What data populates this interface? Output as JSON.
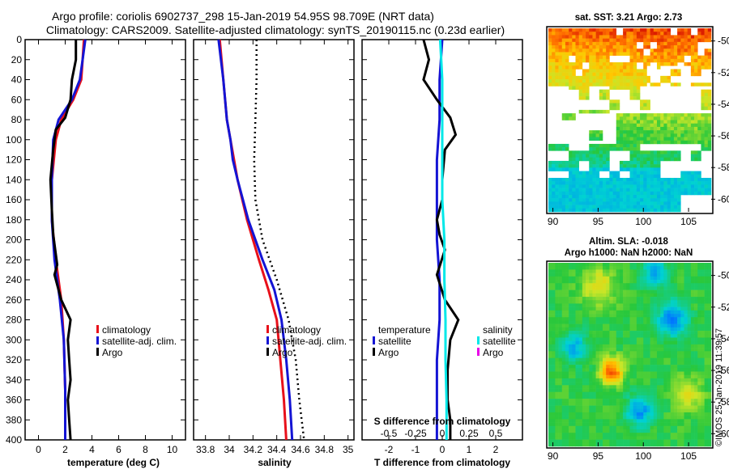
{
  "header": {
    "title_line1": "Argo profile: coriolis 6902737_298 15-Jan-2019 54.95S 98.709E (NRT data)",
    "title_line2": "Climatology: CARS2009. Satellite-adjusted climatology: synTS_20190115.nc (0.23d earlier)"
  },
  "watermark": "©IMOS 25-Jan-2019 11:39:57",
  "colors": {
    "climatology": "#e8101a",
    "satellite": "#1414d4",
    "argo": "#000000",
    "sat_salinity": "#00e8e8",
    "clim_salinity_marker": "#e800e8"
  },
  "chart_data": [
    {
      "id": "temperature",
      "type": "line",
      "xlabel": "temperature (deg C)",
      "ylabel": "",
      "xlim": [
        -1,
        11
      ],
      "ylim": [
        400,
        0
      ],
      "xticks": [
        0,
        2,
        4,
        6,
        8,
        10
      ],
      "yticks": [
        0,
        20,
        40,
        60,
        80,
        100,
        120,
        140,
        160,
        180,
        200,
        220,
        240,
        260,
        280,
        300,
        320,
        340,
        360,
        380,
        400
      ],
      "legend": [
        "climatology",
        "satellite-adj. clim.",
        "Argo"
      ],
      "series": [
        {
          "name": "climatology",
          "color": "#e8101a",
          "points": [
            [
              3.4,
              0
            ],
            [
              3.3,
              20
            ],
            [
              3.2,
              40
            ],
            [
              2.6,
              60
            ],
            [
              1.7,
              80
            ],
            [
              1.3,
              100
            ],
            [
              1.0,
              140
            ],
            [
              1.0,
              180
            ],
            [
              1.3,
              220
            ],
            [
              1.7,
              260
            ],
            [
              1.9,
              300
            ],
            [
              2.0,
              350
            ],
            [
              2.0,
              400
            ]
          ]
        },
        {
          "name": "satellite-adj. clim.",
          "color": "#1414d4",
          "points": [
            [
              3.5,
              0
            ],
            [
              3.3,
              20
            ],
            [
              3.1,
              40
            ],
            [
              2.5,
              60
            ],
            [
              1.5,
              80
            ],
            [
              1.1,
              100
            ],
            [
              1.0,
              140
            ],
            [
              1.0,
              180
            ],
            [
              1.2,
              220
            ],
            [
              1.6,
              260
            ],
            [
              1.9,
              300
            ],
            [
              2.0,
              350
            ],
            [
              2.0,
              400
            ]
          ]
        },
        {
          "name": "Argo",
          "color": "#000000",
          "points": [
            [
              2.8,
              0
            ],
            [
              2.8,
              20
            ],
            [
              2.5,
              40
            ],
            [
              2.4,
              60
            ],
            [
              2.0,
              78
            ],
            [
              1.3,
              90
            ],
            [
              1.1,
              110
            ],
            [
              0.9,
              140
            ],
            [
              1.0,
              170
            ],
            [
              1.1,
              195
            ],
            [
              1.4,
              225
            ],
            [
              1.2,
              235
            ],
            [
              1.7,
              260
            ],
            [
              2.4,
              280
            ],
            [
              2.2,
              300
            ],
            [
              2.3,
              320
            ],
            [
              2.4,
              340
            ],
            [
              2.2,
              360
            ],
            [
              2.3,
              380
            ],
            [
              2.4,
              400
            ]
          ]
        }
      ]
    },
    {
      "id": "salinity",
      "type": "line",
      "xlabel": "salinity",
      "ylabel": "",
      "xlim": [
        33.7,
        35.05
      ],
      "ylim": [
        400,
        0
      ],
      "xticks": [
        33.8,
        34,
        34.2,
        34.4,
        34.6,
        34.8,
        35
      ],
      "tick_labels": [
        "33.8",
        "34",
        "34.2",
        "34.4",
        "34.6",
        "34.8",
        "35"
      ],
      "legend": [
        "climatology",
        "satellite-adj. clim.",
        "Argo"
      ],
      "series": [
        {
          "name": "climatology",
          "color": "#e8101a",
          "points": [
            [
              33.92,
              0
            ],
            [
              33.95,
              40
            ],
            [
              33.98,
              80
            ],
            [
              34.01,
              100
            ],
            [
              34.04,
              120
            ],
            [
              34.07,
              140
            ],
            [
              34.15,
              180
            ],
            [
              34.25,
              220
            ],
            [
              34.33,
              250
            ],
            [
              34.4,
              280
            ],
            [
              34.43,
              320
            ],
            [
              34.46,
              360
            ],
            [
              34.48,
              400
            ]
          ]
        },
        {
          "name": "satellite-adj. clim.",
          "color": "#1414d4",
          "points": [
            [
              33.91,
              0
            ],
            [
              33.95,
              40
            ],
            [
              33.98,
              80
            ],
            [
              34.01,
              100
            ],
            [
              34.03,
              120
            ],
            [
              34.07,
              140
            ],
            [
              34.16,
              180
            ],
            [
              34.28,
              220
            ],
            [
              34.38,
              250
            ],
            [
              34.44,
              280
            ],
            [
              34.48,
              320
            ],
            [
              34.51,
              360
            ],
            [
              34.53,
              400
            ]
          ]
        },
        {
          "name": "Argo",
          "color": "#000000",
          "dashed": true,
          "points": [
            [
              34.23,
              0
            ],
            [
              34.23,
              40
            ],
            [
              34.22,
              80
            ],
            [
              34.21,
              120
            ],
            [
              34.22,
              160
            ],
            [
              34.28,
              200
            ],
            [
              34.4,
              240
            ],
            [
              34.5,
              280
            ],
            [
              34.56,
              320
            ],
            [
              34.59,
              360
            ],
            [
              34.63,
              400
            ]
          ]
        }
      ]
    },
    {
      "id": "difference",
      "type": "line",
      "xlabel": "T difference from climatology",
      "xlabel2": "S difference from climatology",
      "xlim": [
        -3,
        3
      ],
      "ylim": [
        400,
        0
      ],
      "xticks": [
        -2,
        -1,
        0,
        1,
        2
      ],
      "tick_labels": [
        "-2",
        "-1",
        "0",
        "1",
        "2"
      ],
      "xticks2": [
        -0.5,
        -0.25,
        0,
        0.25,
        0.5
      ],
      "tick_labels2": [
        "-0.5",
        "-0.25",
        "0",
        "0.25",
        "0.5"
      ],
      "legend_temperature_title": "temperature",
      "legend_salinity_title": "salinity",
      "legend_labels": [
        "satellite",
        "Argo",
        "satellite",
        "Argo"
      ],
      "series": [
        {
          "name": "temperature satellite",
          "color": "#1414d4",
          "points": [
            [
              0.0,
              0
            ],
            [
              -0.1,
              40
            ],
            [
              -0.1,
              80
            ],
            [
              -0.2,
              120
            ],
            [
              -0.2,
              160
            ],
            [
              -0.2,
              200
            ],
            [
              -0.1,
              240
            ],
            [
              -0.1,
              280
            ],
            [
              -0.2,
              320
            ],
            [
              -0.2,
              360
            ],
            [
              -0.2,
              400
            ]
          ]
        },
        {
          "name": "temperature Argo",
          "color": "#000000",
          "points": [
            [
              -0.7,
              0
            ],
            [
              -0.5,
              20
            ],
            [
              -0.7,
              40
            ],
            [
              -0.2,
              60
            ],
            [
              0.3,
              78
            ],
            [
              0.5,
              95
            ],
            [
              0.1,
              110
            ],
            [
              0.0,
              140
            ],
            [
              0.0,
              160
            ],
            [
              -0.2,
              180
            ],
            [
              -0.1,
              195
            ],
            [
              0.1,
              210
            ],
            [
              -0.2,
              235
            ],
            [
              0.1,
              260
            ],
            [
              0.6,
              280
            ],
            [
              0.3,
              300
            ],
            [
              0.2,
              330
            ],
            [
              0.2,
              360
            ],
            [
              0.3,
              380
            ],
            [
              0.3,
              400
            ]
          ]
        },
        {
          "name": "salinity satellite",
          "color": "#00e8e8",
          "points": [
            [
              -0.02,
              0
            ],
            [
              0.0,
              40
            ],
            [
              0.0,
              80
            ],
            [
              0.0,
              120
            ],
            [
              0.0,
              160
            ],
            [
              0.02,
              200
            ],
            [
              0.02,
              240
            ],
            [
              0.03,
              280
            ],
            [
              0.03,
              320
            ],
            [
              0.04,
              360
            ],
            [
              0.04,
              400
            ]
          ]
        },
        {
          "name": "salinity Argo",
          "color": "#000000",
          "dashed": false,
          "points": [
            [
              0.0,
              0
            ],
            [
              -0.02,
              80
            ],
            [
              0.01,
              160
            ],
            [
              0.0,
              240
            ],
            [
              0.0,
              320
            ],
            [
              0.0,
              400
            ]
          ]
        }
      ]
    },
    {
      "id": "sst_map",
      "type": "heatmap",
      "title": "sat. SST: 3.21 Argo: 2.73",
      "xticks": [
        90,
        95,
        100,
        105
      ],
      "yticks": [
        -50,
        -52,
        -54,
        -56,
        -58,
        -60
      ],
      "xlim": [
        89.5,
        107.5
      ],
      "ylim": [
        -60.8,
        -49.2
      ]
    },
    {
      "id": "sla_map",
      "type": "heatmap",
      "title_line1": "Altim. SLA: -0.018",
      "title_line2": "Argo h1000: NaN h2000: NaN",
      "xticks": [
        90,
        95,
        100,
        105
      ],
      "yticks": [
        -50,
        -52,
        -54,
        -56,
        -58,
        -60
      ],
      "xlim": [
        89.5,
        107.5
      ],
      "ylim": [
        -60.8,
        -49.2
      ]
    }
  ]
}
